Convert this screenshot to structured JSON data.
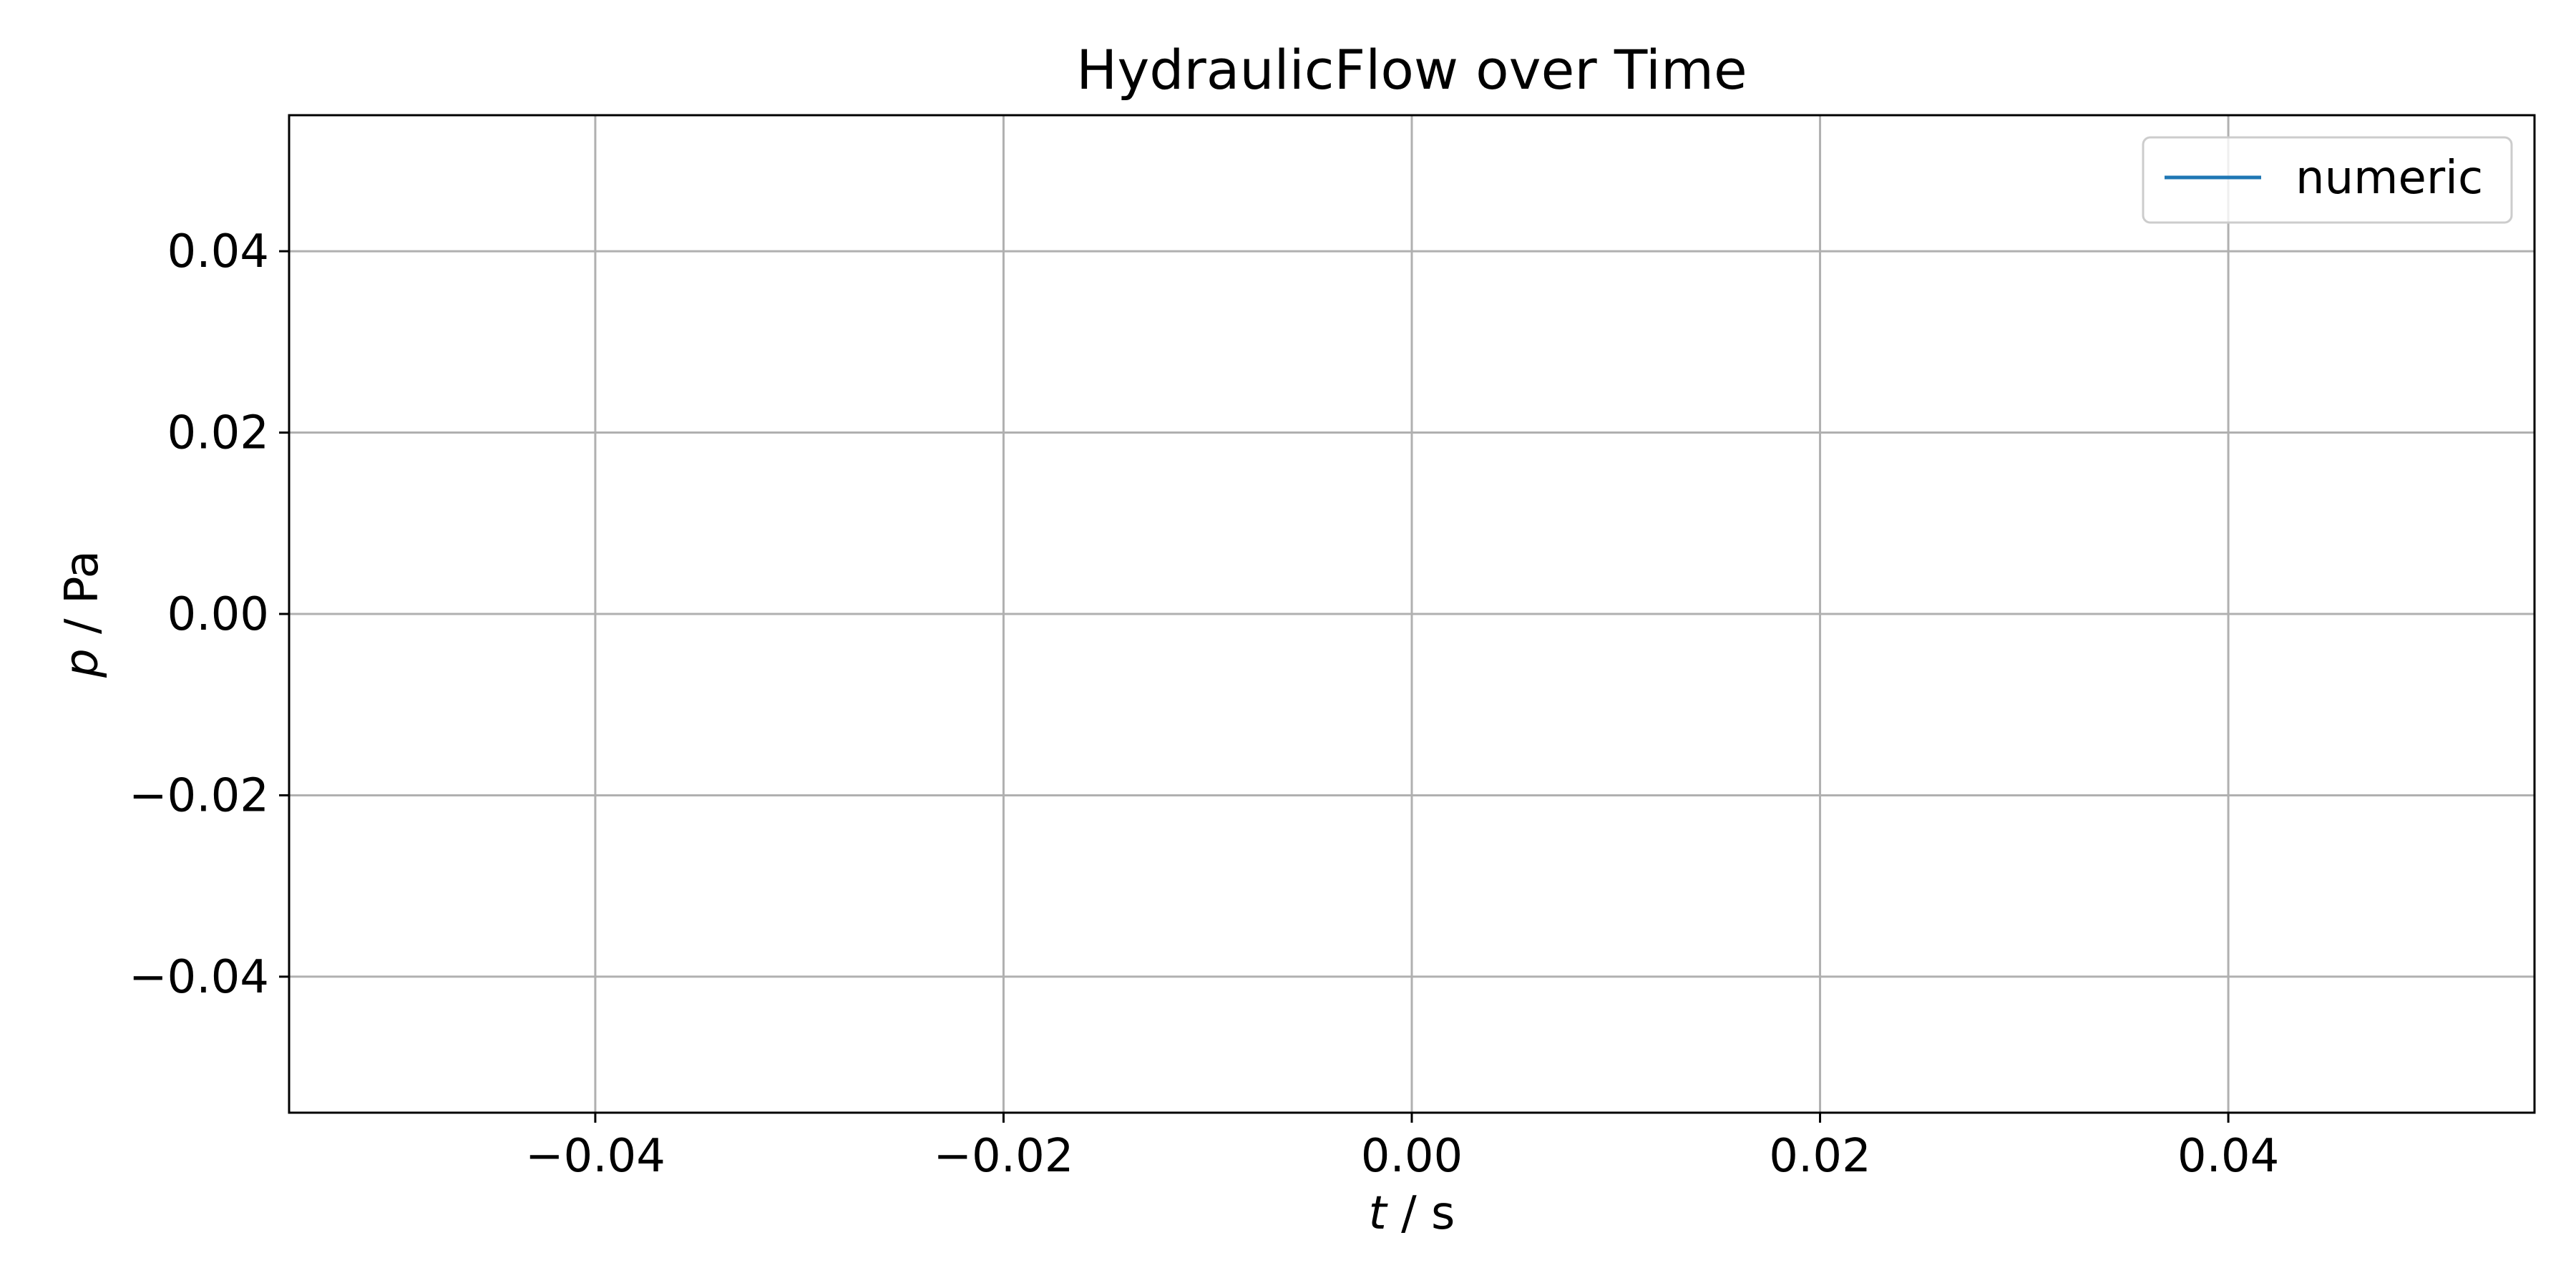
{
  "chart_data": {
    "type": "line",
    "title": "HydraulicFlow over Time",
    "xlabel_var": "t",
    "xlabel_unit": " / s",
    "ylabel_var": "p",
    "ylabel_unit": " / Pa",
    "xlim": [
      -0.055,
      0.055
    ],
    "ylim": [
      -0.055,
      0.055
    ],
    "xticks": [
      -0.04,
      -0.02,
      0.0,
      0.02,
      0.04
    ],
    "yticks": [
      0.04,
      0.02,
      0.0,
      -0.02,
      -0.04
    ],
    "xtick_labels": [
      "−0.04",
      "−0.02",
      "0.00",
      "0.02",
      "0.04"
    ],
    "ytick_labels": [
      "0.04",
      "0.02",
      "0.00",
      "−0.02",
      "−0.04"
    ],
    "grid": true,
    "legend_position": "top-right",
    "series": [
      {
        "name": "numeric",
        "color": "#1f77b4",
        "x": [],
        "y": []
      }
    ]
  }
}
